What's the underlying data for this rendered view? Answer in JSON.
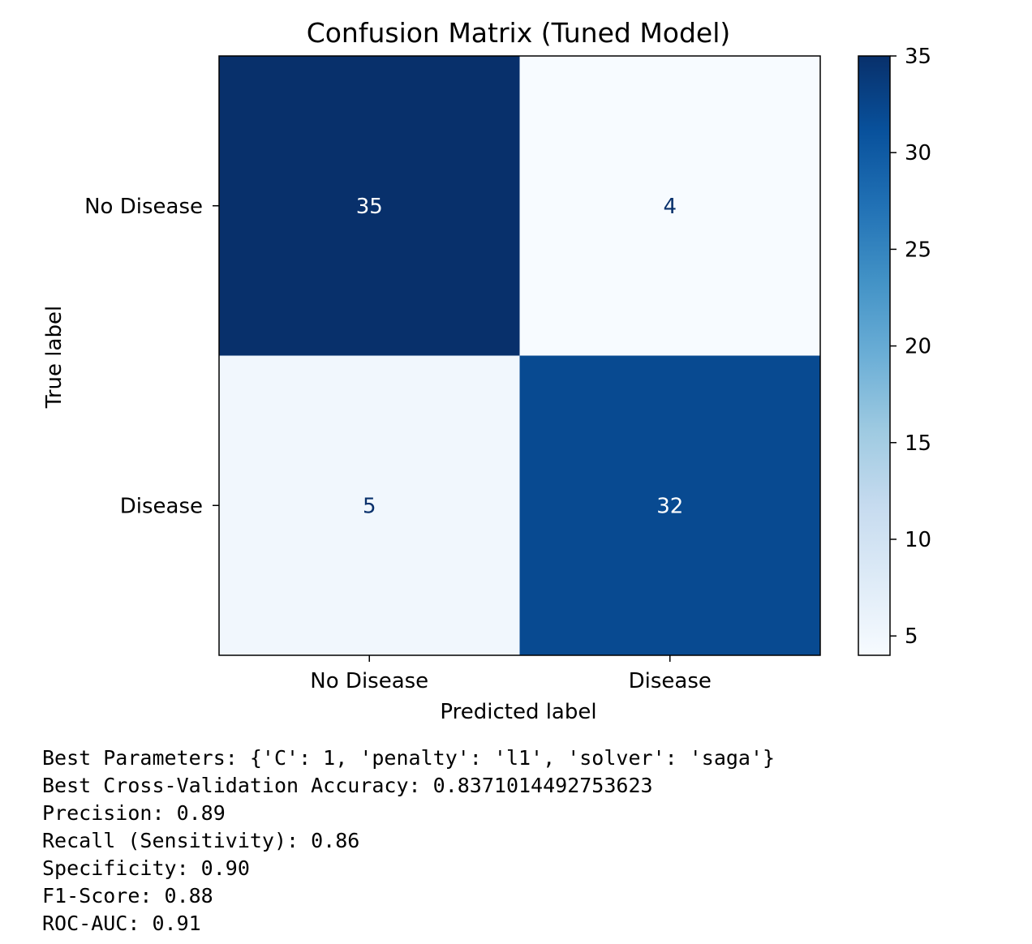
{
  "chart_data": {
    "type": "heatmap",
    "title": "Confusion Matrix (Tuned Model)",
    "xlabel": "Predicted label",
    "ylabel": "True label",
    "x_categories": [
      "No Disease",
      "Disease"
    ],
    "y_categories": [
      "No Disease",
      "Disease"
    ],
    "values": [
      [
        35,
        4
      ],
      [
        5,
        32
      ]
    ],
    "colormap": "Blues",
    "colorbar": {
      "min": 4,
      "max": 35,
      "ticks": [
        5,
        10,
        15,
        20,
        25,
        30,
        35
      ]
    },
    "colors": {
      "cell_light": "#f7fbff",
      "cell_dark": "#08306b",
      "text_on_dark": "#ffffff",
      "text_on_light": "#08306b"
    }
  },
  "output_lines": [
    "Best Parameters: {'C': 1, 'penalty': 'l1', 'solver': 'saga'}",
    "Best Cross-Validation Accuracy: 0.8371014492753623",
    "Precision: 0.89",
    "Recall (Sensitivity): 0.86",
    "Specificity: 0.90",
    "F1-Score: 0.88",
    "ROC-AUC: 0.91"
  ]
}
